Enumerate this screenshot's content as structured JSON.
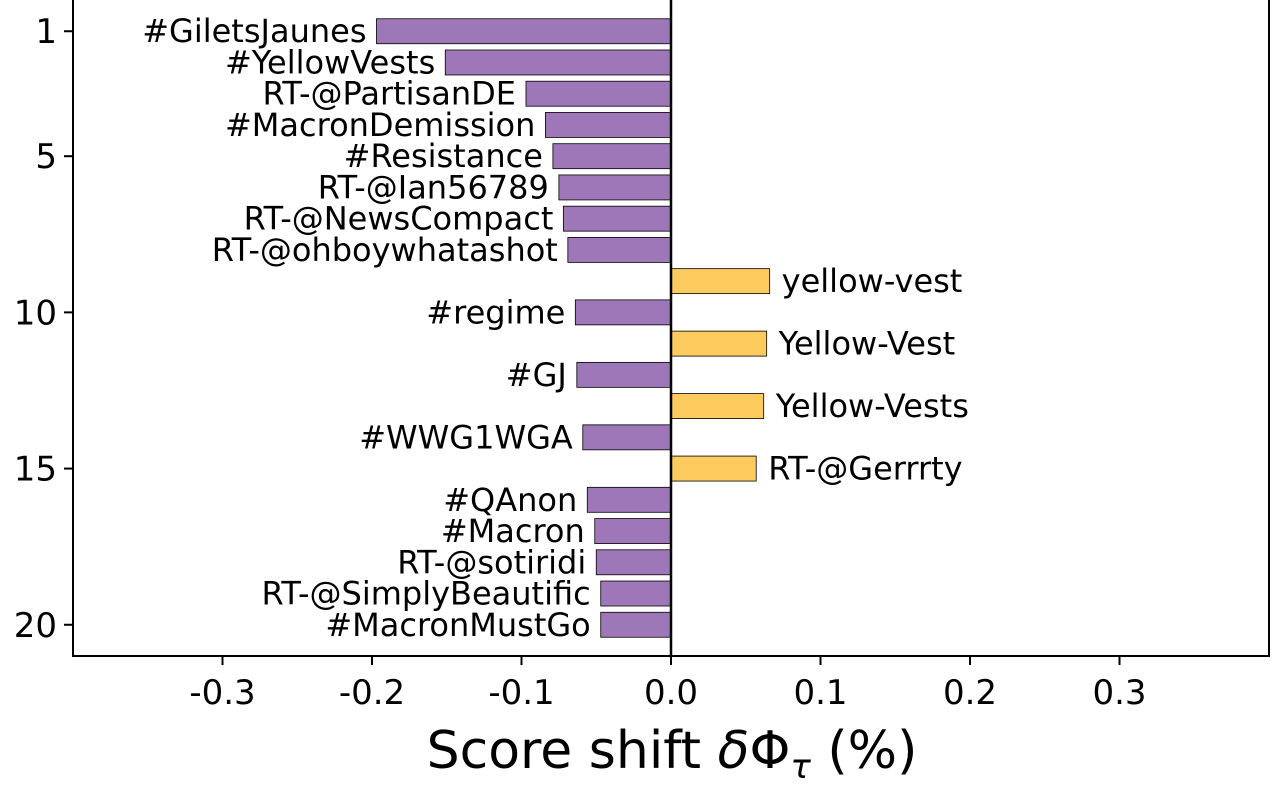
{
  "chart_data": {
    "type": "bar",
    "orientation": "horizontal",
    "xlabel": "Score shift δΦ_τ (%)",
    "xlim": [
      -0.4,
      0.4
    ],
    "xticks": [
      "-0.3",
      "-0.2",
      "-0.1",
      "0.0",
      "0.1",
      "0.2",
      "0.3"
    ],
    "xtick_values": [
      -0.3,
      -0.2,
      -0.1,
      0.0,
      0.1,
      0.2,
      0.3
    ],
    "ylim": [
      21,
      0
    ],
    "yticks": [
      "1",
      "5",
      "10",
      "15",
      "20"
    ],
    "ytick_values": [
      1,
      5,
      10,
      15,
      20
    ],
    "negative_color": "#9e77b8",
    "positive_color": "#fdca5e",
    "bars": [
      {
        "rank": 1,
        "label": "#GiletsJaunes",
        "value": -0.197
      },
      {
        "rank": 2,
        "label": "#YellowVests",
        "value": -0.151
      },
      {
        "rank": 3,
        "label": "RT-@PartisanDE",
        "value": -0.097
      },
      {
        "rank": 4,
        "label": "#MacronDemission",
        "value": -0.084
      },
      {
        "rank": 5,
        "label": "#Resistance",
        "value": -0.079
      },
      {
        "rank": 6,
        "label": "RT-@Ian56789",
        "value": -0.075
      },
      {
        "rank": 7,
        "label": "RT-@NewsCompact",
        "value": -0.072
      },
      {
        "rank": 8,
        "label": "RT-@ohboywhatashot",
        "value": -0.069
      },
      {
        "rank": 9,
        "label": "yellow-vest",
        "value": 0.066
      },
      {
        "rank": 10,
        "label": "#regime",
        "value": -0.064
      },
      {
        "rank": 11,
        "label": "Yellow-Vest",
        "value": 0.064
      },
      {
        "rank": 12,
        "label": "#GJ",
        "value": -0.063
      },
      {
        "rank": 13,
        "label": "Yellow-Vests",
        "value": 0.062
      },
      {
        "rank": 14,
        "label": "#WWG1WGA",
        "value": -0.059
      },
      {
        "rank": 15,
        "label": "RT-@Gerrrty",
        "value": 0.057
      },
      {
        "rank": 16,
        "label": "#QAnon",
        "value": -0.056
      },
      {
        "rank": 17,
        "label": "#Macron",
        "value": -0.051
      },
      {
        "rank": 18,
        "label": "RT-@sotiridi",
        "value": -0.05
      },
      {
        "rank": 19,
        "label": "RT-@SimplyBeautific",
        "value": -0.047
      },
      {
        "rank": 20,
        "label": "#MacronMustGo",
        "value": -0.047
      }
    ]
  }
}
